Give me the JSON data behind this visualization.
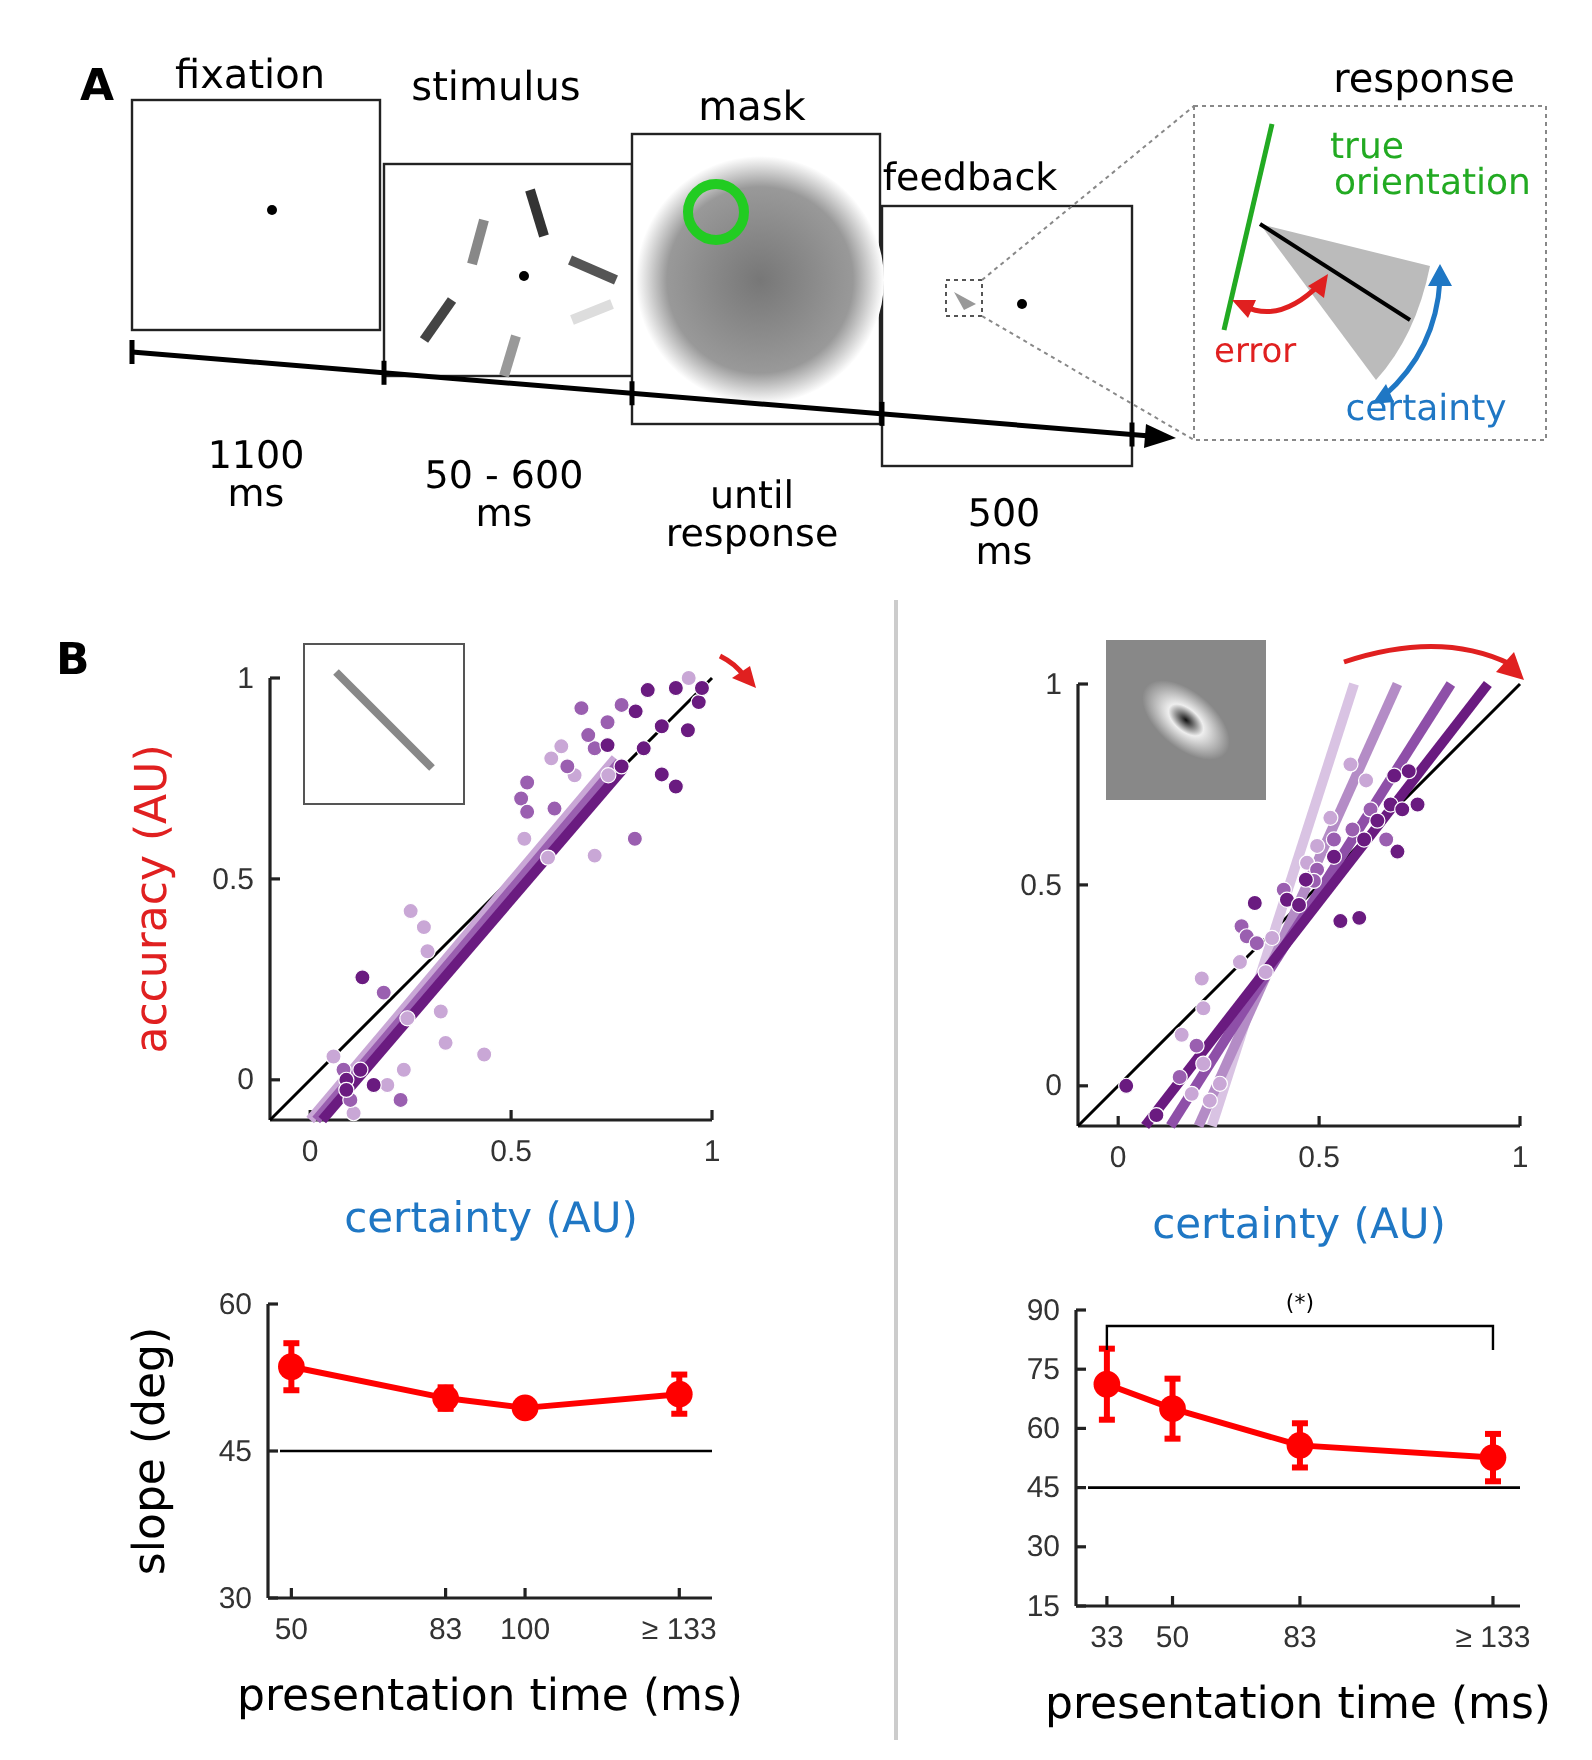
{
  "chart_data": [
    {
      "type": "other",
      "annotations": [
        "A",
        "fixation",
        "stimulus",
        "mask",
        "feedback",
        "response",
        "1100 ms",
        "50 - 600 ms",
        "until response",
        "500 ms",
        "true orientation",
        "error",
        "certainty"
      ]
    },
    {
      "type": "scatter",
      "annotations": [
        "B"
      ],
      "xlabel": "certainty (AU)",
      "ylabel": "accuracy (AU)",
      "xlim": [
        -0.1,
        1
      ],
      "ylim": [
        -0.1,
        1
      ],
      "xticks": [
        0,
        0.5,
        1
      ],
      "yticks": [
        0,
        0.5,
        1
      ],
      "marker": "circle",
      "series": [
        {
          "type": "line",
          "marker": "none",
          "color": "#000000",
          "x": [
            -0.1,
            1
          ],
          "values": [
            -0.1,
            1
          ]
        },
        {
          "type": "line",
          "marker": "none",
          "color": "#c9a7d6",
          "x": [
            0.0,
            0.76
          ],
          "values": [
            -0.1,
            0.8
          ]
        },
        {
          "type": "line",
          "marker": "none",
          "color": "#9a5fb0",
          "x": [
            0.015,
            0.77
          ],
          "values": [
            -0.1,
            0.79
          ]
        },
        {
          "type": "line",
          "marker": "none",
          "color": "#6a1b80",
          "x": [
            0.03,
            0.78
          ],
          "values": [
            -0.1,
            0.775
          ]
        },
        {
          "type": "scatter",
          "color": "#c9a7d6",
          "x": [
            0.25,
            0.283,
            0.292,
            0.242,
            0.325,
            0.337,
            0.433,
            0.233,
            0.192,
            0.058,
            0.6,
            0.625,
            0.708,
            0.592,
            0.533,
            0.658,
            0.742,
            0.108,
            0.942
          ],
          "values": [
            0.42,
            0.38,
            0.32,
            0.153,
            0.17,
            0.092,
            0.063,
            0.025,
            -0.013,
            0.058,
            0.8,
            0.83,
            0.558,
            0.553,
            0.6,
            0.758,
            0.758,
            -0.083,
            1.0
          ]
        },
        {
          "type": "scatter",
          "color": "#9a5fb0",
          "x": [
            0.675,
            0.74,
            0.708,
            0.64,
            0.54,
            0.525,
            0.54,
            0.608,
            0.808,
            0.183,
            0.083,
            0.1,
            0.225,
            0.775,
            0.692
          ],
          "values": [
            0.925,
            0.89,
            0.825,
            0.78,
            0.74,
            0.7,
            0.667,
            0.675,
            0.6,
            0.217,
            0.025,
            -0.05,
            -0.05,
            0.933,
            0.858
          ]
        },
        {
          "type": "scatter",
          "color": "#6a1b80",
          "x": [
            0.13,
            0.09,
            0.09,
            0.125,
            0.158,
            0.84,
            0.91,
            0.967,
            0.875,
            0.83,
            0.91,
            0.875,
            0.775,
            0.94,
            0.81,
            0.74,
            0.975
          ],
          "values": [
            0.255,
            0.0,
            -0.025,
            0.025,
            -0.013,
            0.97,
            0.975,
            0.94,
            0.88,
            0.825,
            0.73,
            0.76,
            0.78,
            0.87,
            0.917,
            0.833,
            0.975
          ]
        }
      ]
    },
    {
      "type": "scatter",
      "xlabel": "certainty (AU)",
      "xlim": [
        -0.1,
        1
      ],
      "ylim": [
        -0.1,
        1
      ],
      "xticks": [
        0,
        0.5,
        1
      ],
      "yticks": [
        0,
        0.5,
        1
      ],
      "marker": "circle",
      "series": [
        {
          "type": "line",
          "marker": "none",
          "color": "#000000",
          "x": [
            -0.1,
            1
          ],
          "values": [
            -0.1,
            1
          ]
        },
        {
          "type": "line",
          "marker": "none",
          "color": "#d9c3e3",
          "x": [
            0.233,
            0.587
          ],
          "values": [
            -0.1,
            1
          ]
        },
        {
          "type": "line",
          "marker": "none",
          "color": "#b48cc6",
          "x": [
            0.2,
            0.695
          ],
          "values": [
            -0.1,
            1
          ]
        },
        {
          "type": "line",
          "marker": "none",
          "color": "#8e4fa8",
          "x": [
            0.13,
            0.828
          ],
          "values": [
            -0.1,
            1
          ]
        },
        {
          "type": "line",
          "marker": "none",
          "color": "#6a1b80",
          "x": [
            0.067,
            0.92
          ],
          "values": [
            -0.1,
            1
          ]
        },
        {
          "type": "scatter",
          "color": "#c9a7d6",
          "x": [
            0.208,
            0.212,
            0.158,
            0.303,
            0.367,
            0.383,
            0.47,
            0.528,
            0.617,
            0.578,
            0.212,
            0.253,
            0.228,
            0.183,
            0.495
          ],
          "values": [
            0.267,
            0.193,
            0.127,
            0.308,
            0.283,
            0.368,
            0.555,
            0.667,
            0.76,
            0.8,
            0.055,
            0.005,
            -0.037,
            -0.02,
            0.597
          ]
        },
        {
          "type": "scatter",
          "color": "#9a5fb0",
          "x": [
            0.307,
            0.32,
            0.345,
            0.495,
            0.537,
            0.583,
            0.628,
            0.153,
            0.195,
            0.412,
            0.487,
            0.667
          ],
          "values": [
            0.397,
            0.372,
            0.355,
            0.538,
            0.613,
            0.638,
            0.688,
            0.022,
            0.1,
            0.488,
            0.51,
            0.613
          ]
        },
        {
          "type": "scatter",
          "color": "#6a1b80",
          "x": [
            0.02,
            0.095,
            0.34,
            0.42,
            0.45,
            0.467,
            0.553,
            0.6,
            0.612,
            0.645,
            0.678,
            0.695,
            0.707,
            0.723,
            0.745,
            0.687,
            0.537
          ],
          "values": [
            0.0,
            -0.073,
            0.455,
            0.463,
            0.45,
            0.513,
            0.41,
            0.418,
            0.613,
            0.66,
            0.7,
            0.583,
            0.688,
            0.783,
            0.7,
            0.772,
            0.57
          ]
        }
      ]
    },
    {
      "type": "line",
      "xlabel": "presentation time (ms)",
      "ylabel": "slope (deg)",
      "x": [
        50,
        83,
        100,
        133
      ],
      "xlim": [
        45,
        140
      ],
      "ylim": [
        30,
        60
      ],
      "xticks": [
        50,
        83,
        100,
        {
          "value": 133,
          "label": "≥ 133"
        }
      ],
      "yticks": [
        30,
        45,
        60
      ],
      "marker": "circle",
      "ref_lines": [
        {
          "axis": "y",
          "value": 45,
          "color": "#000000"
        }
      ],
      "series": [
        {
          "color": "#ff0000",
          "values": [
            53.6,
            50.4,
            49.4,
            50.8
          ],
          "errors": [
            2.4,
            1.1,
            0.6,
            2.0
          ]
        }
      ]
    },
    {
      "type": "line",
      "xlabel": "presentation time (ms)",
      "annotations": [
        "(*)"
      ],
      "x": [
        33,
        50,
        83,
        133
      ],
      "xlim": [
        25,
        140
      ],
      "ylim": [
        15,
        90
      ],
      "xticks": [
        33,
        50,
        83,
        {
          "value": 133,
          "label": "≥ 133"
        }
      ],
      "yticks": [
        15,
        30,
        45,
        60,
        75,
        90
      ],
      "marker": "circle",
      "ref_lines": [
        {
          "axis": "y",
          "value": 45,
          "color": "#000000"
        }
      ],
      "series": [
        {
          "color": "#ff0000",
          "values": [
            71.2,
            65.0,
            55.7,
            52.6
          ],
          "errors": [
            9.0,
            7.6,
            5.6,
            6.0
          ]
        }
      ]
    }
  ]
}
